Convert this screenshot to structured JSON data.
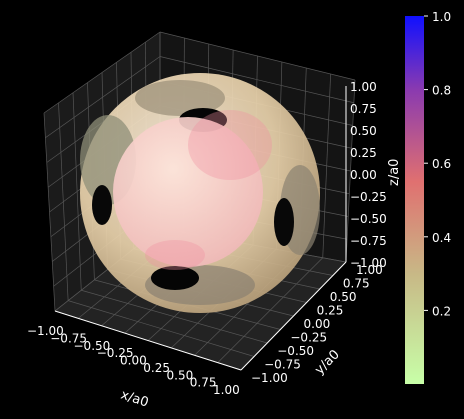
{
  "chart_data": {
    "type": "surface3d",
    "xlabel": "x/a0",
    "ylabel": "y/a0",
    "zlabel": "z/a0",
    "xlim": [
      -1.0,
      1.0
    ],
    "ylim": [
      -1.0,
      1.0
    ],
    "zlim": [
      -1.0,
      1.0
    ],
    "x_ticks": [
      "−1.00",
      "−0.75",
      "−0.50",
      "−0.25",
      "0.00",
      "0.25",
      "0.50",
      "0.75",
      "1.00"
    ],
    "y_ticks": [
      "−1.00",
      "−0.75",
      "−0.50",
      "−0.25",
      "0.00",
      "0.25",
      "0.50",
      "0.75",
      "1.00"
    ],
    "z_ticks": [
      "1.00",
      "0.75",
      "0.50",
      "0.25",
      "0.00",
      "−0.25",
      "−0.50",
      "−0.75",
      "−1.00"
    ],
    "grid": true,
    "background": "#000000",
    "colorbar": {
      "range": [
        0.0,
        1.0
      ],
      "ticks": [
        "0.2",
        "0.4",
        "0.6",
        "0.8",
        "1.0"
      ],
      "colors": [
        "#c8ffa8",
        "#c8b886",
        "#e07070",
        "#8a3ab0",
        "#1010ff"
      ]
    },
    "surfaces": [
      {
        "name": "outer-sphere",
        "color": "#f0d8b0"
      },
      {
        "name": "inner-sphere",
        "color": "#f8c8c8"
      }
    ]
  }
}
